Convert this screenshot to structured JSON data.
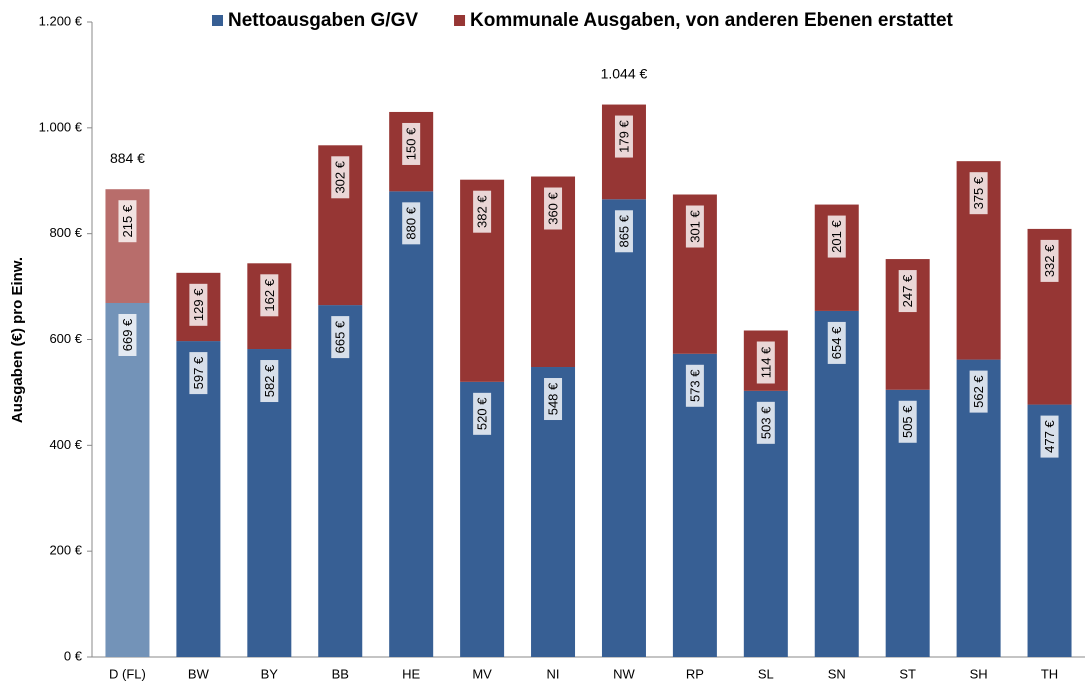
{
  "chart_data": {
    "type": "stacked_bar",
    "y_label": "Ausgaben (€) pro Einw.",
    "categories": [
      "D (FL)",
      "BW",
      "BY",
      "BB",
      "HE",
      "MV",
      "NI",
      "NW",
      "RP",
      "SL",
      "SN",
      "ST",
      "SH",
      "TH"
    ],
    "series": [
      {
        "name": "Nettoausgaben G/GV",
        "color": "#375f94",
        "colors": [
          "#7393b8",
          "#375f94",
          "#375f94",
          "#375f94",
          "#375f94",
          "#375f94",
          "#375f94",
          "#375f94",
          "#375f94",
          "#375f94",
          "#375f94",
          "#375f94",
          "#375f94",
          "#375f94"
        ],
        "values": [
          669,
          597,
          582,
          665,
          880,
          520,
          548,
          865,
          573,
          503,
          654,
          505,
          562,
          477
        ],
        "value_labels": [
          "669 €",
          "597 €",
          "582 €",
          "665 €",
          "880 €",
          "520 €",
          "548 €",
          "865 €",
          "573 €",
          "503 €",
          "654 €",
          "505 €",
          "562 €",
          "477 €"
        ]
      },
      {
        "name": "Kommunale Ausgaben, von anderen Ebenen erstattet",
        "color": "#963634",
        "colors": [
          "#b86d6b",
          "#963634",
          "#963634",
          "#963634",
          "#963634",
          "#963634",
          "#963634",
          "#963634",
          "#963634",
          "#963634",
          "#963634",
          "#963634",
          "#963634",
          "#963634"
        ],
        "values": [
          215,
          129,
          162,
          302,
          150,
          382,
          360,
          179,
          301,
          114,
          201,
          247,
          375,
          332
        ],
        "value_labels": [
          "215 €",
          "129 €",
          "162 €",
          "302 €",
          "150 €",
          "382 €",
          "360 €",
          "179 €",
          "301 €",
          "114 €",
          "201 €",
          "247 €",
          "375 €",
          "332 €"
        ]
      }
    ],
    "annotations": [
      {
        "x": "D (FL)",
        "value": 884,
        "label": "884 €"
      },
      {
        "x": "NW",
        "value": 1044,
        "label": "1.044 €"
      }
    ],
    "ylim": [
      0,
      1200
    ],
    "yticks": [
      {
        "value": 0,
        "label": "0 €"
      },
      {
        "value": 200,
        "label": "200 €"
      },
      {
        "value": 400,
        "label": "400 €"
      },
      {
        "value": 600,
        "label": "600 €"
      },
      {
        "value": 800,
        "label": "800 €"
      },
      {
        "value": 1000,
        "label": "1.000 €"
      },
      {
        "value": 1200,
        "label": "1.200 €"
      }
    ],
    "legend": "top"
  }
}
